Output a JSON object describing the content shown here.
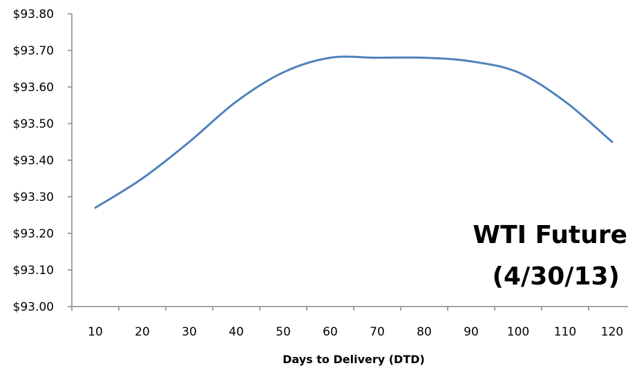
{
  "chart_data": {
    "type": "line",
    "title": "",
    "xlabel": "Days to Delivery (DTD)",
    "ylabel": "",
    "annotation": [
      "WTI Future",
      "(4/30/13)"
    ],
    "x": [
      10,
      20,
      30,
      40,
      50,
      60,
      70,
      80,
      90,
      100,
      110,
      120
    ],
    "x_tick_labels": [
      "10",
      "20",
      "30",
      "40",
      "50",
      "60",
      "70",
      "80",
      "90",
      "100",
      "110",
      "120"
    ],
    "y_tick_labels": [
      "$93.00",
      "$93.10",
      "$93.20",
      "$93.30",
      "$93.40",
      "$93.50",
      "$93.60",
      "$93.70",
      "$93.80"
    ],
    "y_ticks": [
      93.0,
      93.1,
      93.2,
      93.3,
      93.4,
      93.5,
      93.6,
      93.7,
      93.8
    ],
    "ylim": [
      93.0,
      93.8
    ],
    "grid": false,
    "legend": "none",
    "series": [
      {
        "values": [
          93.27,
          93.35,
          93.45,
          93.56,
          93.64,
          93.68,
          93.68,
          93.68,
          93.67,
          93.64,
          93.56,
          93.45
        ],
        "color": "#4F81BD"
      }
    ],
    "axis_color": "#868686"
  }
}
